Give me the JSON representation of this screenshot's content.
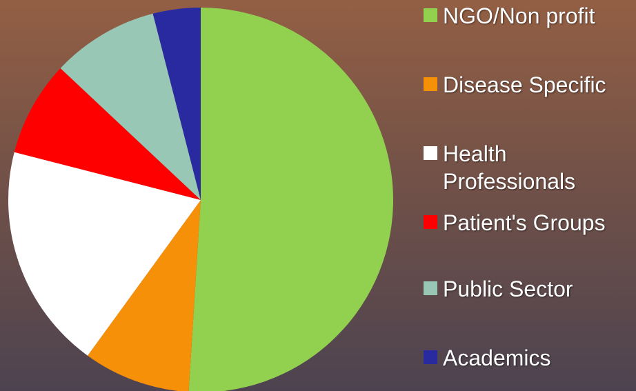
{
  "chart_data": {
    "type": "pie",
    "categories": [
      "NGO/Non profit",
      "Disease Specific",
      "Health Professionals",
      "Patient's Groups",
      "Public Sector",
      "Academics"
    ],
    "values": [
      51,
      9,
      19,
      8,
      9,
      4
    ],
    "colors": [
      "#92d050",
      "#f79009",
      "#ffffff",
      "#ff0000",
      "#99c7b5",
      "#2a2aa0"
    ],
    "legend": "right"
  }
}
